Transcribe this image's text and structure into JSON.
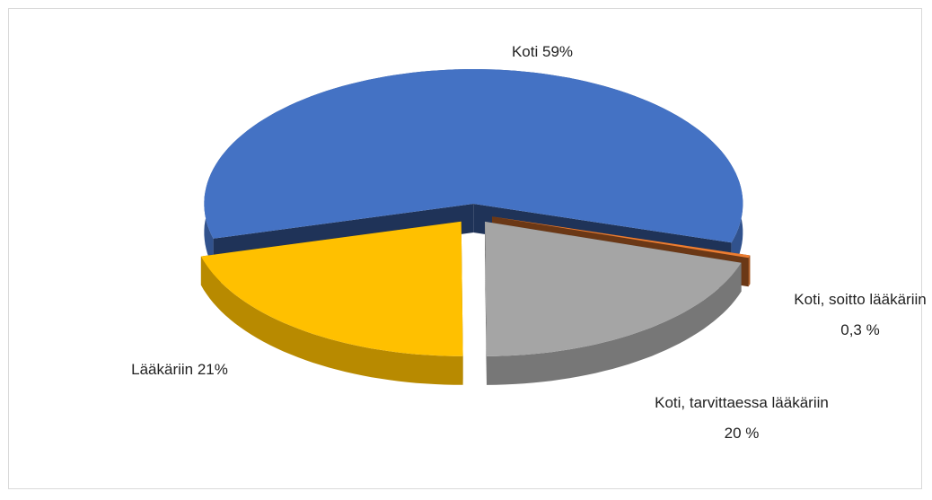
{
  "chart_data": {
    "type": "pie3d",
    "values": [
      59,
      0.3,
      20,
      21
    ],
    "value_labels": [
      "Koti 59%",
      "Koti, soitto lääkäriin 0,3 %",
      "Koti, tarvittaessa lääkäriin 20 %",
      "Lääkäriin 21%"
    ],
    "colors": [
      "#4472c4",
      "#ed7d31",
      "#a5a5a5",
      "#ffc000"
    ]
  }
}
